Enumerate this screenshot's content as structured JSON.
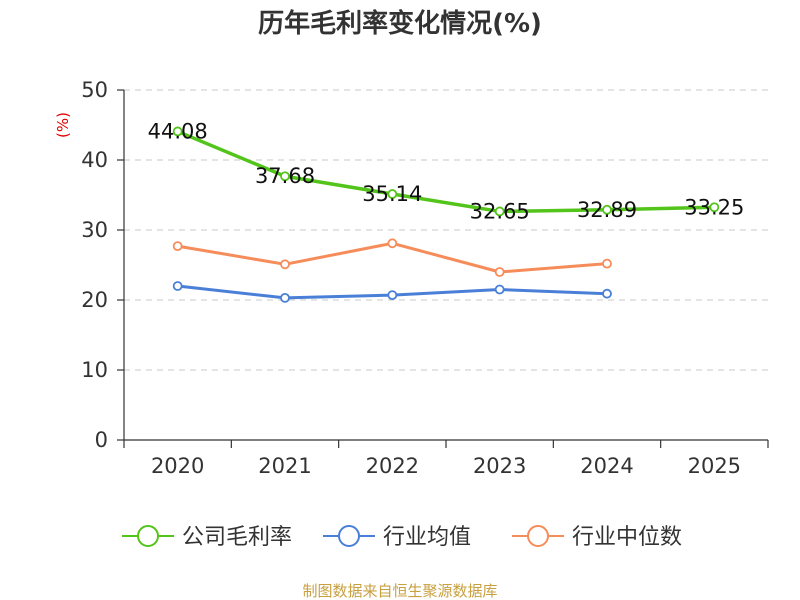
{
  "chart_data": {
    "type": "line",
    "title": "历年毛利率变化情况(%)",
    "xlabel": "",
    "ylabel": "(%)",
    "categories": [
      "2020",
      "2021",
      "2022",
      "2023",
      "2024",
      "2025"
    ],
    "ylim": [
      0,
      50
    ],
    "yticks": [
      0,
      10,
      20,
      30,
      40,
      50
    ],
    "grid": true,
    "legend_position": "bottom",
    "series": [
      {
        "name": "公司毛利率",
        "color": "#52c41a",
        "values": [
          44.08,
          37.68,
          35.14,
          32.65,
          32.89,
          33.25
        ],
        "labels": [
          "44.08",
          "37.68",
          "35.14",
          "32.65",
          "32.89",
          "33.25"
        ]
      },
      {
        "name": "行业均值",
        "color": "#4a7fd8",
        "values": [
          22.0,
          20.3,
          20.7,
          21.5,
          20.9,
          null
        ]
      },
      {
        "name": "行业中位数",
        "color": "#f58c5a",
        "values": [
          27.7,
          25.1,
          28.1,
          24.0,
          25.2,
          null
        ]
      }
    ],
    "source": "制图数据来自恒生聚源数据库"
  }
}
